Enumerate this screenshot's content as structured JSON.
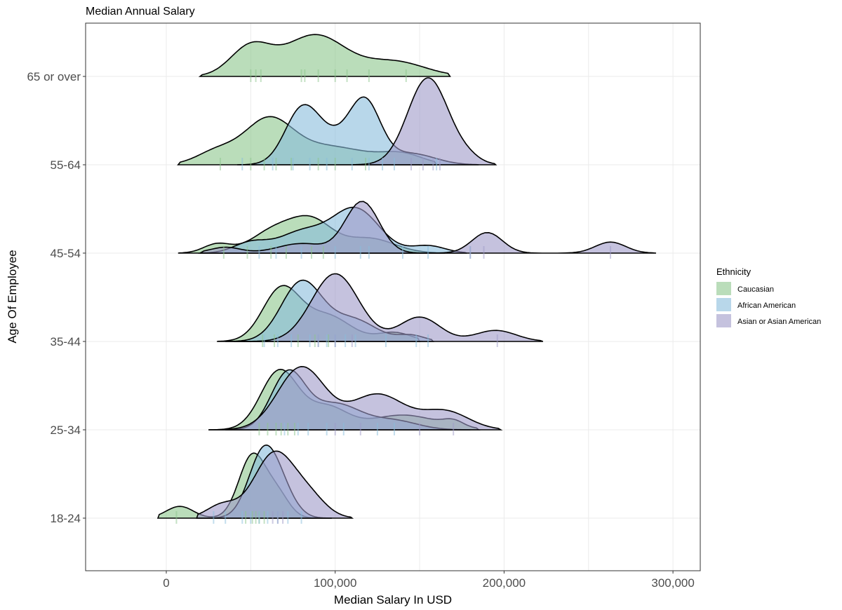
{
  "chart_data": {
    "type": "area",
    "subtype": "ridgeline-density",
    "title": "Median Annual Salary",
    "xlabel": "Median Salary In USD",
    "ylabel": "Age Of Employee",
    "xlim": [
      -50000,
      317000
    ],
    "x_ticks": [
      0,
      100000,
      200000,
      300000
    ],
    "x_tick_labels": [
      "0",
      "100,000",
      "200,000",
      "300,000"
    ],
    "categories": [
      "18-24",
      "25-34",
      "35-44",
      "45-54",
      "55-64",
      "65 or over"
    ],
    "grid": true,
    "legend_position": "right",
    "legend_title": "Ethnicity",
    "series": [
      {
        "name": "Caucasian",
        "color": "#8cc68c",
        "densities": {
          "18-24": {
            "range": [
              -5000,
              98000
            ],
            "peaks": [
              [
                8000,
                0.16,
                8000
              ],
              [
                51000,
                0.85,
                8000
              ],
              [
                66000,
                0.3,
                7000
              ]
            ]
          },
          "25-34": {
            "range": [
              25000,
              185000
            ],
            "peaks": [
              [
                67000,
                0.8,
                11000
              ],
              [
                95000,
                0.3,
                12000
              ],
              [
                140000,
                0.2,
                20000
              ],
              [
                170000,
                0.08,
                6000
              ]
            ]
          },
          "35-44": {
            "range": [
              30000,
              150000
            ],
            "peaks": [
              [
                68000,
                0.7,
                11000
              ],
              [
                95000,
                0.35,
                14000
              ],
              [
                135000,
                0.12,
                10000
              ]
            ]
          },
          "45-54": {
            "range": [
              7000,
              165000
            ],
            "peaks": [
              [
                30000,
                0.12,
                8000
              ],
              [
                65000,
                0.32,
                14000
              ],
              [
                87000,
                0.38,
                12000
              ],
              [
                120000,
                0.2,
                15000
              ]
            ]
          },
          "55-64": {
            "range": [
              7000,
              160000
            ],
            "peaks": [
              [
                30000,
                0.18,
                12000
              ],
              [
                60000,
                0.55,
                14000
              ],
              [
                95000,
                0.25,
                25000
              ],
              [
                140000,
                0.12,
                12000
              ]
            ]
          },
          "65 or over": {
            "range": [
              20000,
              168000
            ],
            "peaks": [
              [
                50000,
                0.4,
                12000
              ],
              [
                88000,
                0.56,
                18000
              ],
              [
                135000,
                0.2,
                18000
              ]
            ]
          }
        },
        "rug": {
          "18-24": [
            6000,
            47000,
            51000,
            53000,
            55000,
            58000
          ],
          "25-34": [
            55000,
            60000,
            65000,
            68000,
            72000,
            76000
          ],
          "35-44": [
            57000,
            64000,
            78000,
            88000,
            96000
          ],
          "45-54": [
            34000,
            48000,
            62000,
            71000,
            86000,
            93000
          ],
          "55-64": [
            32000,
            50000,
            58000,
            65000,
            74000,
            90000,
            100000,
            118000
          ],
          "65 or over": [
            50000,
            53000,
            56000,
            80000,
            82000,
            90000,
            100000,
            107000,
            120000,
            142000
          ]
        }
      },
      {
        "name": "African American",
        "color": "#88bddc",
        "densities": {
          "18-24": {
            "range": [
              18000,
              98000
            ],
            "peaks": [
              [
                58000,
                0.92,
                9000
              ],
              [
                70000,
                0.2,
                8000
              ]
            ]
          },
          "25-34": {
            "range": [
              35000,
              180000
            ],
            "peaks": [
              [
                72000,
                0.75,
                10000
              ],
              [
                100000,
                0.35,
                15000
              ],
              [
                135000,
                0.12,
                14000
              ]
            ]
          },
          "35-44": {
            "range": [
              35000,
              158000
            ],
            "peaks": [
              [
                80000,
                0.8,
                12000
              ],
              [
                110000,
                0.3,
                14000
              ],
              [
                145000,
                0.08,
                8000
              ]
            ]
          },
          "45-54": {
            "range": [
              20000,
              178000
            ],
            "peaks": [
              [
                50000,
                0.14,
                10000
              ],
              [
                80000,
                0.28,
                14000
              ],
              [
                112000,
                0.6,
                14000
              ],
              [
                155000,
                0.1,
                10000
              ]
            ]
          },
          "55-64": {
            "range": [
              42000,
              185000
            ],
            "peaks": [
              [
                80000,
                0.66,
                10000
              ],
              [
                100000,
                0.35,
                15000
              ],
              [
                118000,
                0.72,
                9000
              ],
              [
                145000,
                0.15,
                14000
              ]
            ]
          }
        },
        "rug": {
          "18-24": [
            28000,
            35000,
            45000,
            50000,
            55000,
            60000,
            66000,
            72000,
            80000
          ],
          "25-34": [
            70000,
            78000,
            84000,
            95000,
            105000,
            125000,
            135000
          ],
          "35-44": [
            58000,
            66000,
            74000,
            85000,
            90000,
            95000,
            100000,
            106000,
            112000,
            130000,
            148000,
            155000
          ],
          "45-54": [
            55000,
            65000,
            80000,
            100000,
            115000,
            120000,
            140000,
            155000,
            180000
          ],
          "55-64": [
            45000,
            63000,
            75000,
            85000,
            95000,
            110000,
            120000,
            128000,
            135000,
            160000
          ]
        }
      },
      {
        "name": "Asian or Asian American",
        "color": "#9e9ac8",
        "densities": {
          "18-24": {
            "range": [
              18000,
              110000
            ],
            "peaks": [
              [
                33000,
                0.18,
                9000
              ],
              [
                64000,
                0.88,
                12000
              ],
              [
                85000,
                0.25,
                10000
              ]
            ]
          },
          "25-34": {
            "range": [
              25000,
              198000
            ],
            "peaks": [
              [
                80000,
                0.85,
                14000
              ],
              [
                125000,
                0.48,
                16000
              ],
              [
                165000,
                0.25,
                14000
              ]
            ]
          },
          "35-44": {
            "range": [
              40000,
              223000
            ],
            "peaks": [
              [
                100000,
                0.92,
                14000
              ],
              [
                150000,
                0.33,
                12000
              ],
              [
                195000,
                0.15,
                12000
              ]
            ]
          },
          "45-54": {
            "range": [
              20000,
              290000
            ],
            "peaks": [
              [
                35000,
                0.08,
                9000
              ],
              [
                80000,
                0.13,
                14000
              ],
              [
                116000,
                0.7,
                10000
              ],
              [
                190000,
                0.28,
                9000
              ],
              [
                263000,
                0.15,
                9000
              ]
            ]
          },
          "55-64": {
            "range": [
              110000,
              195000
            ],
            "peaks": [
              [
                155000,
                1.18,
                12000
              ],
              [
                178000,
                0.08,
                8000
              ]
            ]
          }
        },
        "rug": {
          "18-24": [
            63000,
            66000,
            69000
          ],
          "25-34": [
            100000,
            115000,
            150000,
            170000
          ],
          "35-44": [
            90000,
            100000,
            110000,
            196000
          ],
          "45-54": [
            180000,
            188000,
            263000
          ],
          "55-64": [
            145000,
            152000,
            158000,
            162000
          ]
        }
      }
    ]
  }
}
